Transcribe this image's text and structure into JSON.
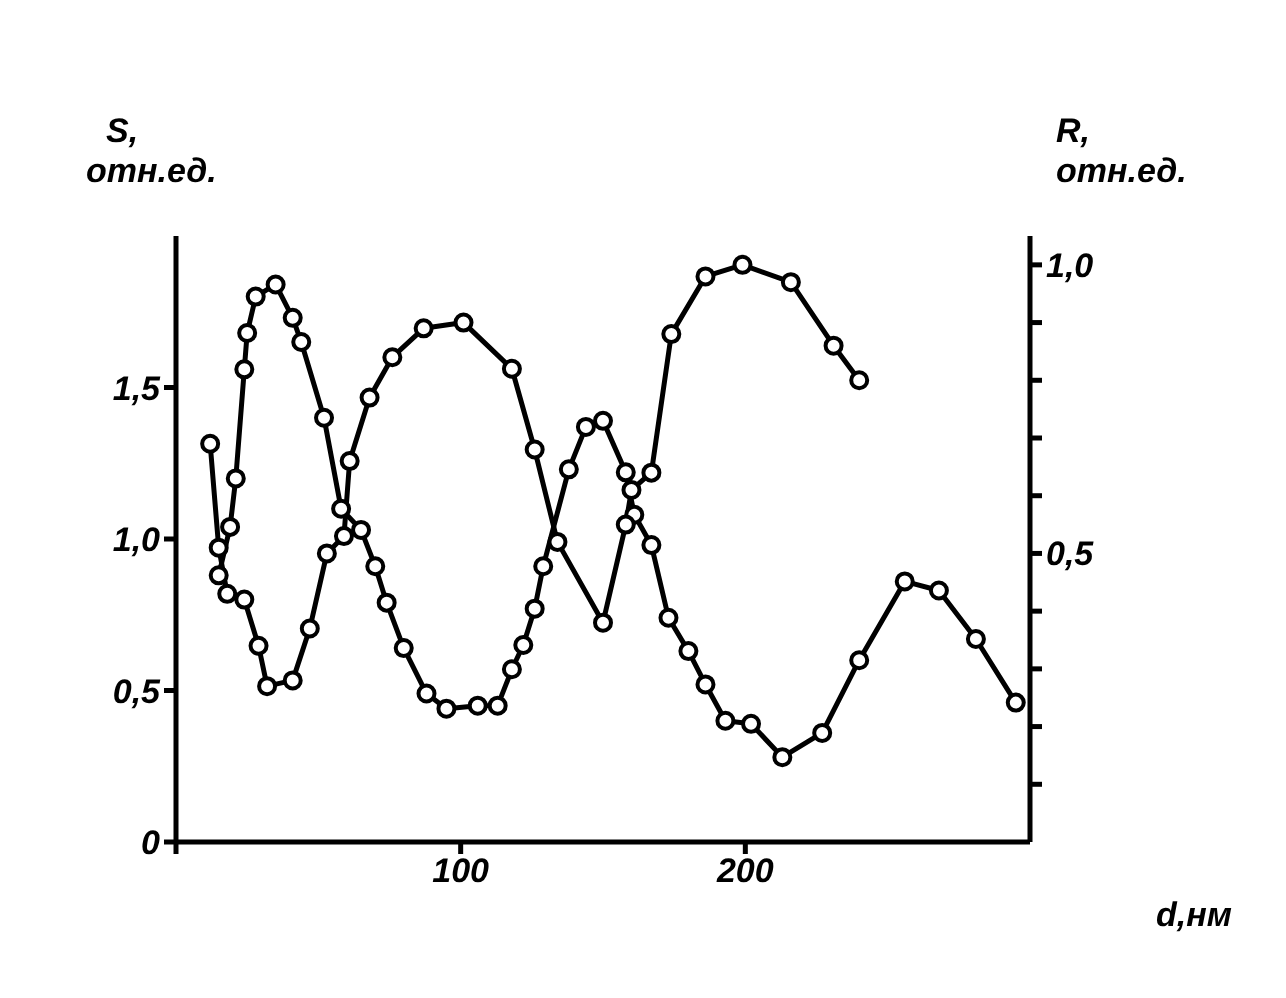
{
  "chart_data": {
    "type": "line",
    "xlabel": "d,нм",
    "ylabel": "S, отн.ед.",
    "y2label": "R, отн.ед.",
    "xlim": [
      0,
      300
    ],
    "xticks": [
      {
        "value": 0,
        "label": null
      },
      100,
      200
    ],
    "ylim": [
      0,
      2.0
    ],
    "yticks": [
      0,
      {
        "value": 0.5,
        "label": "0,5"
      },
      {
        "value": 1.0,
        "label": "1,0"
      },
      {
        "value": 1.5,
        "label": "1,5"
      }
    ],
    "y2lim": [
      0,
      1.05
    ],
    "y2ticks": [
      {
        "value": 0.1,
        "label": null
      },
      {
        "value": 0.2,
        "label": null
      },
      {
        "value": 0.3,
        "label": null
      },
      {
        "value": 0.4,
        "label": null
      },
      {
        "value": 0.5,
        "label": "0,5"
      },
      {
        "value": 0.6,
        "label": null
      },
      {
        "value": 0.7,
        "label": null
      },
      {
        "value": 0.8,
        "label": null
      },
      {
        "value": 0.9,
        "label": null
      },
      {
        "value": 1.0,
        "label": "1,0"
      }
    ],
    "marker": "circle",
    "line_style": "solid",
    "series": [
      {
        "color": "#000000",
        "axis": "y",
        "x": [
          15,
          19,
          21,
          24,
          25,
          28,
          35,
          41,
          44,
          52,
          58,
          65,
          70,
          74,
          80,
          88,
          95,
          106,
          113,
          118,
          122,
          126,
          129,
          138,
          144,
          150,
          158,
          161,
          167,
          173,
          180,
          186,
          193,
          202,
          213,
          227,
          240,
          256,
          268,
          281,
          295
        ],
        "values": [
          0.88,
          1.04,
          1.2,
          1.56,
          1.68,
          1.8,
          1.84,
          1.73,
          1.65,
          1.4,
          1.1,
          1.03,
          0.91,
          0.79,
          0.64,
          0.49,
          0.44,
          0.45,
          0.45,
          0.57,
          0.65,
          0.77,
          0.91,
          1.23,
          1.37,
          1.39,
          1.22,
          1.08,
          0.98,
          0.74,
          0.63,
          0.52,
          0.4,
          0.39,
          0.28,
          0.36,
          0.6,
          0.86,
          0.83,
          0.67,
          0.46
        ]
      },
      {
        "color": "#000000",
        "axis": "y2",
        "x": [
          12,
          15,
          18,
          24,
          29,
          32,
          41,
          47,
          53,
          59,
          61,
          68,
          76,
          87,
          101,
          118,
          126,
          134,
          150,
          158,
          160,
          167,
          174,
          186,
          199,
          216,
          231,
          240
        ],
        "values": [
          0.69,
          0.51,
          0.43,
          0.42,
          0.34,
          0.27,
          0.28,
          0.37,
          0.5,
          0.53,
          0.66,
          0.77,
          0.84,
          0.89,
          0.9,
          0.82,
          0.68,
          0.52,
          0.38,
          0.55,
          0.61,
          0.64,
          0.88,
          0.98,
          1.0,
          0.97,
          0.86,
          0.8
        ]
      }
    ]
  }
}
